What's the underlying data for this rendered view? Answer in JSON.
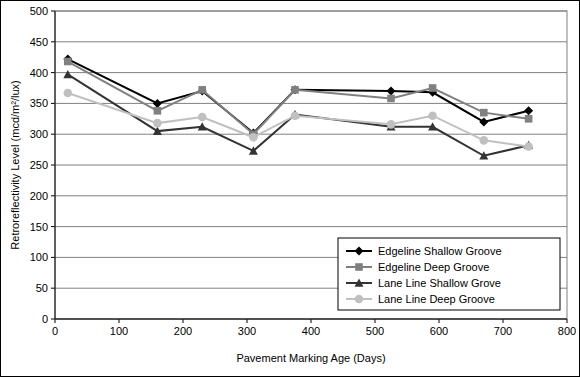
{
  "chart_data": {
    "type": "line",
    "x_label": "Pavement Marking Age (Days)",
    "y_label": "Retroreflectivity Level (mcd/m²/lux)",
    "x": [
      20,
      160,
      230,
      310,
      375,
      525,
      590,
      670,
      740
    ],
    "series": [
      {
        "name": "Edgeline Shallow Groove",
        "color": "#000000",
        "marker": "diamond",
        "values": [
          422,
          350,
          370,
          302,
          372,
          370,
          368,
          320,
          338
        ]
      },
      {
        "name": "Edgeline Deep Groove",
        "color": "#808080",
        "marker": "square",
        "values": [
          418,
          338,
          372,
          300,
          372,
          358,
          375,
          335,
          325
        ]
      },
      {
        "name": "Lane Line Shallow Grove",
        "color": "#333333",
        "marker": "triangle",
        "values": [
          397,
          305,
          312,
          273,
          332,
          312,
          312,
          265,
          282
        ]
      },
      {
        "name": "Lane Line Deep Groove",
        "color": "#c0c0c0",
        "marker": "circle",
        "values": [
          367,
          318,
          328,
          295,
          330,
          316,
          330,
          290,
          280
        ]
      }
    ],
    "xlim": [
      0,
      800
    ],
    "xticks": [
      0,
      100,
      200,
      300,
      400,
      500,
      600,
      700,
      800
    ],
    "ylim": [
      0,
      500
    ],
    "yticks": [
      0,
      50,
      100,
      150,
      200,
      250,
      300,
      350,
      400,
      450,
      500
    ],
    "grid": true,
    "legend": "lower right"
  }
}
